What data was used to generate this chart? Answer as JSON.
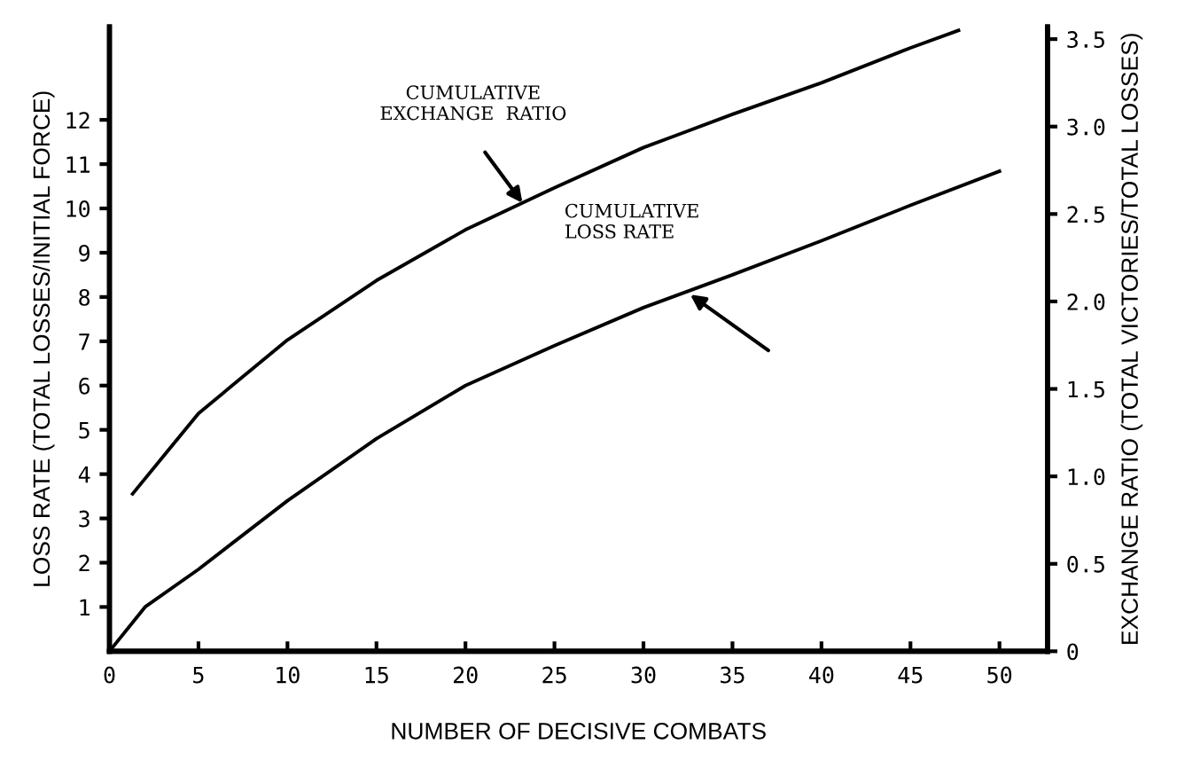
{
  "chart_data": {
    "type": "line",
    "xlabel": "NUMBER OF DECISIVE COMBATS",
    "ylabel": "LOSS RATE (TOTAL LOSSES/INITIAL FORCE)",
    "y2label": "EXCHANGE RATIO (TOTAL VICTORIES/TOTAL LOSSES)",
    "xlim": [
      0,
      52.7
    ],
    "xticks": [
      0,
      5,
      10,
      15,
      20,
      25,
      30,
      35,
      40,
      45,
      50
    ],
    "ylim": [
      0,
      14.1
    ],
    "yticks": [
      1,
      2,
      3,
      4,
      5,
      6,
      7,
      8,
      9,
      10,
      11,
      12
    ],
    "y2lim": [
      0,
      3.57
    ],
    "y2ticks": [
      0,
      0.5,
      {
        "value": 1,
        "label": "1.0"
      },
      1.5,
      {
        "value": 2,
        "label": "2.0"
      },
      2.5,
      {
        "value": 3,
        "label": "3.0"
      },
      3.5
    ],
    "grid": false,
    "legend": false,
    "marker": "none",
    "line_style": "solid",
    "series": [
      {
        "color": "#000000",
        "x": [
          0,
          2,
          5,
          10,
          15,
          20,
          25,
          30,
          35,
          40,
          45,
          50
        ],
        "values": [
          0,
          1.0,
          1.85,
          3.4,
          4.8,
          6.0,
          6.9,
          7.76,
          8.5,
          9.27,
          10.07,
          10.84
        ]
      },
      {
        "color": "#000000",
        "axis": "y2",
        "x": [
          1.3,
          5,
          10,
          15,
          20,
          25,
          30,
          35,
          40,
          45,
          47.7
        ],
        "values": [
          0.9,
          1.36,
          1.78,
          2.12,
          2.41,
          2.65,
          2.88,
          3.07,
          3.25,
          3.45,
          3.55
        ]
      }
    ],
    "annotations": [
      "CUMULATIVE\nEXCHANGE  RATIO",
      {
        "text": "CUMULATIVE\nLOSS RATE",
        "x": 32.4,
        "y": 8.12
      }
    ]
  }
}
